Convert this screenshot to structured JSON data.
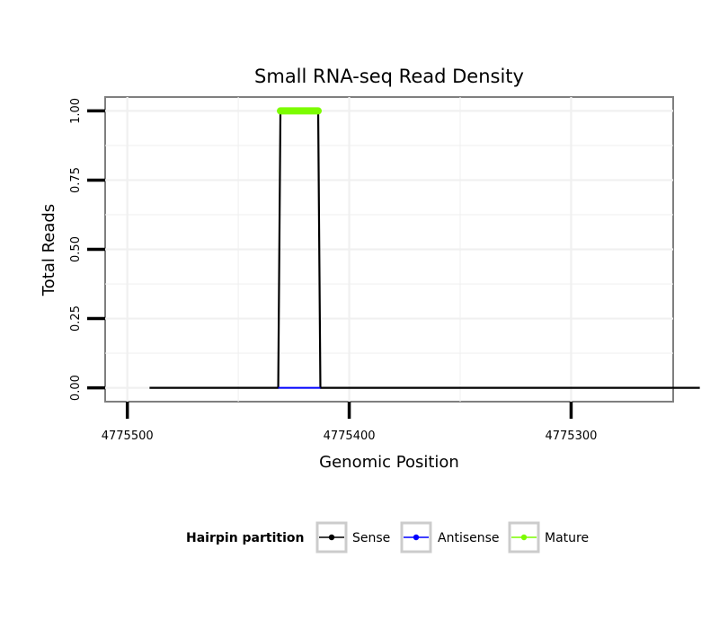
{
  "chart_data": {
    "type": "line",
    "title": "Small RNA-seq Read Density",
    "xlabel": "Genomic Position",
    "ylabel": "Total Reads",
    "x_reversed": true,
    "xlim": [
      4775510,
      4775254
    ],
    "ylim": [
      -0.05,
      1.05
    ],
    "x_ticks": [
      4775500,
      4775400,
      4775300
    ],
    "x_tick_labels": [
      "4775500",
      "4775400",
      "4775300"
    ],
    "y_ticks": [
      0,
      0.25,
      0.5,
      0.75,
      1.0
    ],
    "y_tick_labels": [
      "0.00",
      "0.25",
      "0.50",
      "0.75",
      "1.00"
    ],
    "grid": true,
    "series": [
      {
        "name": "Sense",
        "color": "#000000",
        "x": [
          4775490,
          4775432,
          4775431,
          4775414,
          4775413,
          4775242
        ],
        "y": [
          0,
          0,
          1,
          1,
          0,
          0
        ]
      },
      {
        "name": "Antisense",
        "color": "#0000ff",
        "x": [
          4775432,
          4775413
        ],
        "y": [
          0,
          0
        ]
      },
      {
        "name": "Mature",
        "color": "#7cfc00",
        "x": [
          4775431,
          4775414
        ],
        "y": [
          1,
          1
        ]
      }
    ],
    "legend": {
      "title": "Hairpin partition",
      "position": "bottom",
      "entries": [
        "Sense",
        "Antisense",
        "Mature"
      ]
    }
  }
}
